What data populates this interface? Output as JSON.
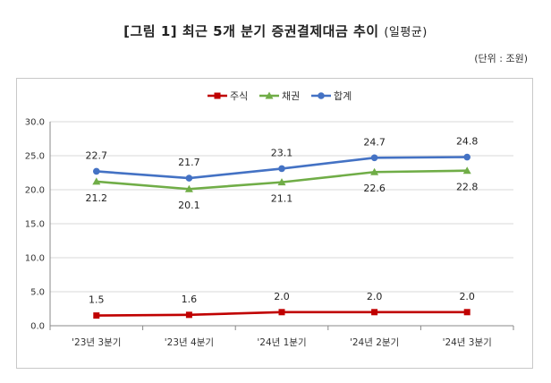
{
  "header": {
    "title": "[그림 1] 최근 5개 분기 증권결제대금 추이",
    "title_suffix": "(일평균)",
    "unit": "(단위 : 조원)"
  },
  "chart_data": {
    "type": "line",
    "categories": [
      "'23년 3분기",
      "'23년 4분기",
      "'24년 1분기",
      "'24년 2분기",
      "'24년 3분기"
    ],
    "series": [
      {
        "name": "주식",
        "values": [
          1.5,
          1.6,
          2.0,
          2.0,
          2.0
        ],
        "color": "#c00000",
        "marker": "square"
      },
      {
        "name": "채권",
        "values": [
          21.2,
          20.1,
          21.1,
          22.6,
          22.8
        ],
        "color": "#70ad47",
        "marker": "triangle"
      },
      {
        "name": "합계",
        "values": [
          22.7,
          21.7,
          23.1,
          24.7,
          24.8
        ],
        "color": "#4472c4",
        "marker": "circle"
      }
    ],
    "ylim": [
      0,
      30
    ],
    "yticks": [
      "0.0",
      "5.0",
      "10.0",
      "15.0",
      "20.0",
      "25.0",
      "30.0"
    ],
    "grid": true,
    "legend": "top-center"
  }
}
